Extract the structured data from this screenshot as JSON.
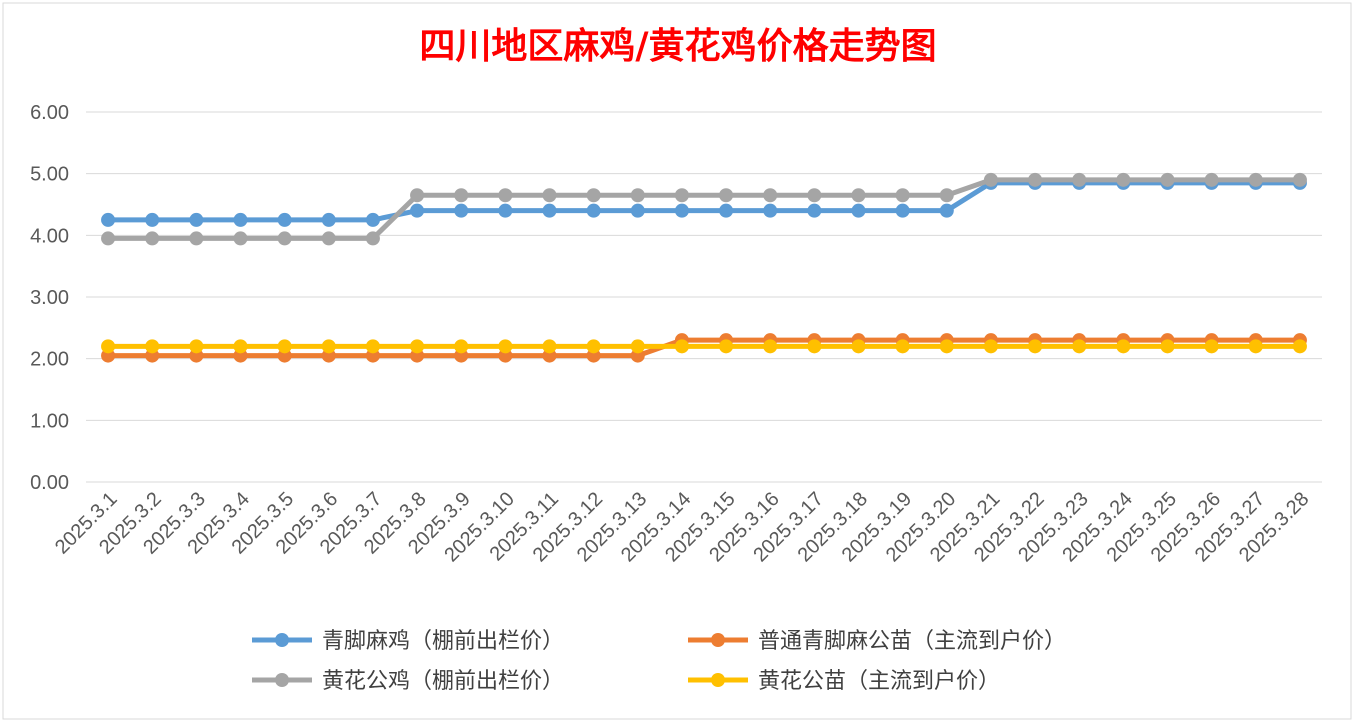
{
  "chart_data": {
    "type": "line",
    "title": "四川地区麻鸡/黄花鸡价格走势图",
    "xlabel": "",
    "ylabel": "",
    "ylim": [
      0,
      6
    ],
    "yticks": [
      "0.00",
      "1.00",
      "2.00",
      "3.00",
      "4.00",
      "5.00",
      "6.00"
    ],
    "grid": true,
    "legend_position": "bottom",
    "categories": [
      "2025.3.1",
      "2025.3.2",
      "2025.3.3",
      "2025.3.4",
      "2025.3.5",
      "2025.3.6",
      "2025.3.7",
      "2025.3.8",
      "2025.3.9",
      "2025.3.10",
      "2025.3.11",
      "2025.3.12",
      "2025.3.13",
      "2025.3.14",
      "2025.3.15",
      "2025.3.16",
      "2025.3.17",
      "2025.3.18",
      "2025.3.19",
      "2025.3.20",
      "2025.3.21",
      "2025.3.22",
      "2025.3.23",
      "2025.3.24",
      "2025.3.25",
      "2025.3.26",
      "2025.3.27",
      "2025.3.28"
    ],
    "series": [
      {
        "name": "青脚麻鸡（棚前出栏价）",
        "color": "#5B9BD5",
        "values": [
          4.25,
          4.25,
          4.25,
          4.25,
          4.25,
          4.25,
          4.25,
          4.4,
          4.4,
          4.4,
          4.4,
          4.4,
          4.4,
          4.4,
          4.4,
          4.4,
          4.4,
          4.4,
          4.4,
          4.4,
          4.85,
          4.85,
          4.85,
          4.85,
          4.85,
          4.85,
          4.85,
          4.85
        ]
      },
      {
        "name": "普通青脚麻公苗（主流到户价）",
        "color": "#ED7D31",
        "values": [
          2.05,
          2.05,
          2.05,
          2.05,
          2.05,
          2.05,
          2.05,
          2.05,
          2.05,
          2.05,
          2.05,
          2.05,
          2.05,
          2.3,
          2.3,
          2.3,
          2.3,
          2.3,
          2.3,
          2.3,
          2.3,
          2.3,
          2.3,
          2.3,
          2.3,
          2.3,
          2.3,
          2.3
        ]
      },
      {
        "name": "黄花公鸡（棚前出栏价）",
        "color": "#A5A5A5",
        "values": [
          3.95,
          3.95,
          3.95,
          3.95,
          3.95,
          3.95,
          3.95,
          4.65,
          4.65,
          4.65,
          4.65,
          4.65,
          4.65,
          4.65,
          4.65,
          4.65,
          4.65,
          4.65,
          4.65,
          4.65,
          4.9,
          4.9,
          4.9,
          4.9,
          4.9,
          4.9,
          4.9,
          4.9
        ]
      },
      {
        "name": "黄花公苗（主流到户价）",
        "color": "#FFC000",
        "values": [
          2.2,
          2.2,
          2.2,
          2.2,
          2.2,
          2.2,
          2.2,
          2.2,
          2.2,
          2.2,
          2.2,
          2.2,
          2.2,
          2.2,
          2.2,
          2.2,
          2.2,
          2.2,
          2.2,
          2.2,
          2.2,
          2.2,
          2.2,
          2.2,
          2.2,
          2.2,
          2.2,
          2.2
        ]
      }
    ],
    "title_color": "#FF0000"
  }
}
